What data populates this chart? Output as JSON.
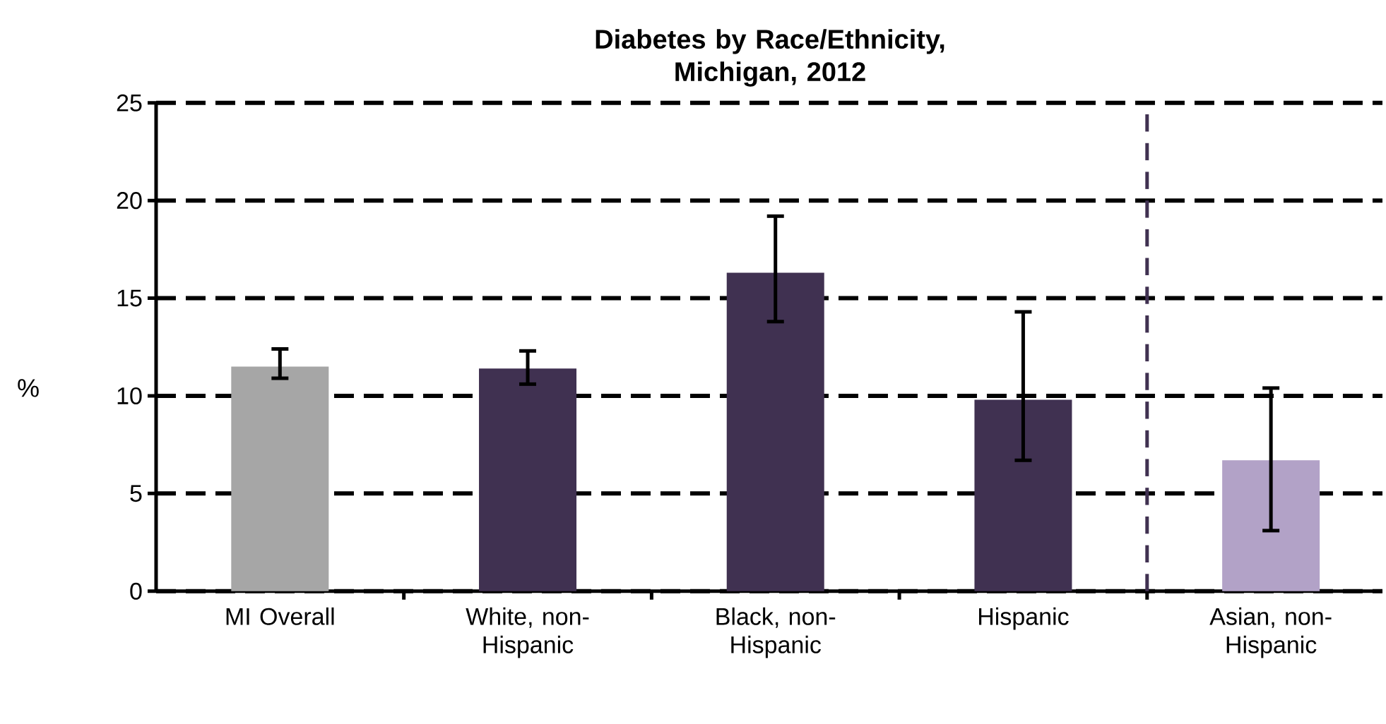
{
  "chart_data": {
    "type": "bar",
    "title": "Diabetes by Race/Ethnicity, Michigan, 2012",
    "ylabel": "%",
    "categories": [
      "MI Overall",
      "White, non-Hispanic",
      "Black, non-Hispanic",
      "Hispanic",
      "Asian, non-Hispanic"
    ],
    "values": [
      11.5,
      11.4,
      16.3,
      9.8,
      6.7
    ],
    "colors": [
      "#a6a6a6",
      "#403151",
      "#403151",
      "#403151",
      "#b2a2c7"
    ],
    "errors": [
      [
        10.9,
        12.4
      ],
      [
        10.6,
        12.3
      ],
      [
        13.8,
        19.2
      ],
      [
        6.7,
        14.3
      ],
      [
        3.1,
        10.4
      ]
    ],
    "ylim": [
      0,
      25
    ],
    "yticks": [
      0,
      5,
      10,
      15,
      20,
      25
    ],
    "grid": "y"
  }
}
